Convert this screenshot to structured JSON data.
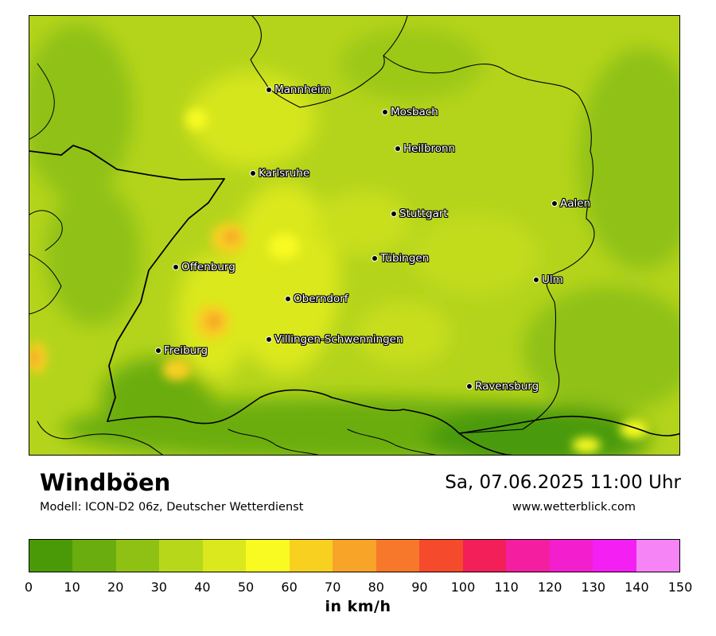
{
  "title": "Windböen",
  "model_info": "Modell: ICON-D2 06z, Deutscher Wetterdienst",
  "datetime": "Sa, 07.06.2025 11:00 Uhr",
  "website": "www.wetterblick.com",
  "unit_label": "in km/h",
  "legend": {
    "ticks": [
      "0",
      "10",
      "20",
      "30",
      "40",
      "50",
      "60",
      "70",
      "80",
      "90",
      "100",
      "110",
      "120",
      "130",
      "140",
      "150"
    ],
    "colors": [
      "#4a9a07",
      "#6aad0e",
      "#8fc114",
      "#b7d81a",
      "#dbe81d",
      "#f8fa22",
      "#f8d020",
      "#f7a429",
      "#f7782a",
      "#f54a2c",
      "#f21f58",
      "#f31fa0",
      "#f31fcf",
      "#f41ff3",
      "#f784f7"
    ]
  },
  "cities": [
    {
      "name": "Mannheim"
    },
    {
      "name": "Mosbach"
    },
    {
      "name": "Heilbronn"
    },
    {
      "name": "Karlsruhe"
    },
    {
      "name": "Aalen"
    },
    {
      "name": "Stuttgart"
    },
    {
      "name": "Tübingen"
    },
    {
      "name": "Offenburg"
    },
    {
      "name": "Ulm"
    },
    {
      "name": "Oberndorf"
    },
    {
      "name": "Villingen-Schwenningen"
    },
    {
      "name": "Freiburg"
    },
    {
      "name": "Ravensburg"
    }
  ]
}
